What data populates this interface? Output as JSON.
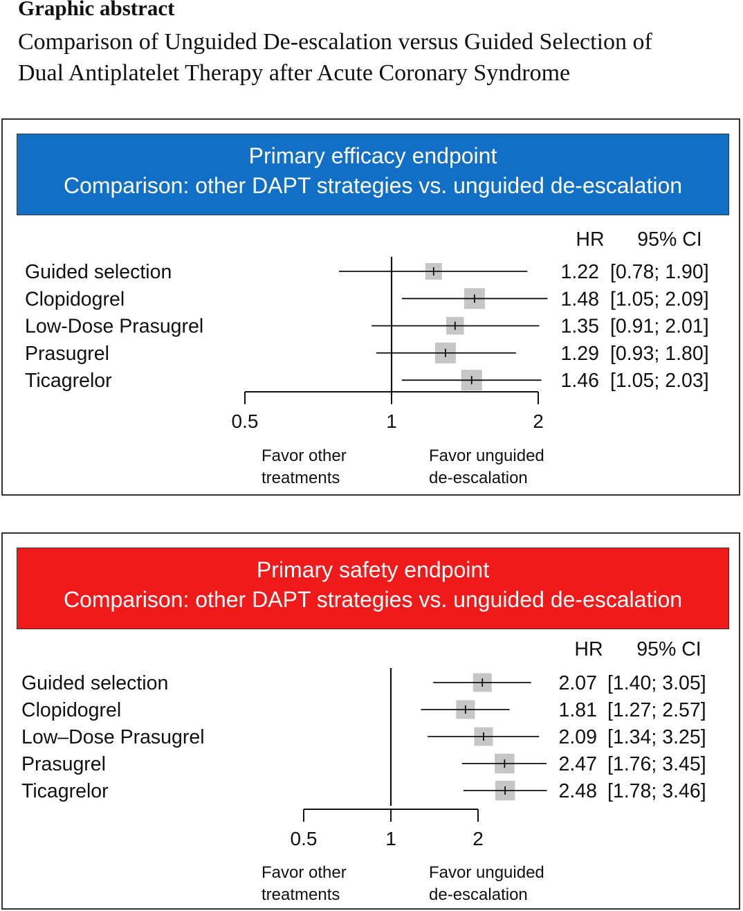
{
  "header": {
    "title": "Graphic abstract",
    "subtitle_line1": "Comparison of Unguided De-escalation versus Guided Selection of",
    "subtitle_line2": "Dual Antiplatelet Therapy after Acute Coronary Syndrome"
  },
  "colors": {
    "efficacy_banner": "#1170c6",
    "safety_banner": "#f01a1a",
    "ci_box": "#c6c6c6",
    "line": "#111111"
  },
  "chart_data": [
    {
      "type": "forest",
      "title": "Primary efficacy endpoint",
      "subtitle": "Comparison: other DAPT strategies vs. unguided de-escalation",
      "col_hr": "HR",
      "col_ci": "95% CI",
      "scale": "log",
      "xlim": [
        0.5,
        2.0
      ],
      "ticks": [
        {
          "value": 0.5,
          "label": "0.5"
        },
        {
          "value": 1,
          "label": "1"
        },
        {
          "value": 2,
          "label": "2"
        }
      ],
      "reference": 1,
      "favor_left": [
        "Favor other",
        "treatments"
      ],
      "favor_right": [
        "Favor unguided",
        "de-escalation"
      ],
      "rows": [
        {
          "label": "Guided selection",
          "hr": 1.22,
          "lo": 0.78,
          "hi": 1.9,
          "hr_text": "1.22",
          "ci_text": "[0.78; 1.90]",
          "weight": 0.8
        },
        {
          "label": "Clopidogrel",
          "hr": 1.48,
          "lo": 1.05,
          "hi": 2.09,
          "hr_text": "1.48",
          "ci_text": "[1.05; 2.09]",
          "weight": 1.0
        },
        {
          "label": "Low-Dose Prasugrel",
          "hr": 1.35,
          "lo": 0.91,
          "hi": 2.01,
          "hr_text": "1.35",
          "ci_text": "[0.91; 2.01]",
          "weight": 0.85
        },
        {
          "label": "Prasugrel",
          "hr": 1.29,
          "lo": 0.93,
          "hi": 1.8,
          "hr_text": "1.29",
          "ci_text": "[0.93; 1.80]",
          "weight": 1.0
        },
        {
          "label": "Ticagrelor",
          "hr": 1.46,
          "lo": 1.05,
          "hi": 2.03,
          "hr_text": "1.46",
          "ci_text": "[1.05; 2.03]",
          "weight": 1.0
        }
      ]
    },
    {
      "type": "forest",
      "title": "Primary safety endpoint",
      "subtitle": "Comparison: other DAPT strategies vs. unguided de-escalation",
      "col_hr": "HR",
      "col_ci": "95% CI",
      "scale": "log",
      "xlim": [
        0.5,
        2.0
      ],
      "ticks": [
        {
          "value": 0.5,
          "label": "0.5"
        },
        {
          "value": 1,
          "label": "1"
        },
        {
          "value": 2,
          "label": "2"
        }
      ],
      "reference": 1,
      "favor_left": [
        "Favor other",
        "treatments"
      ],
      "favor_right": [
        "Favor unguided",
        "de-escalation"
      ],
      "rows": [
        {
          "label": "Guided selection",
          "hr": 2.07,
          "lo": 1.4,
          "hi": 3.05,
          "hr_text": "2.07",
          "ci_text": "[1.40; 3.05]",
          "weight": 0.9
        },
        {
          "label": "Clopidogrel",
          "hr": 1.81,
          "lo": 1.27,
          "hi": 2.57,
          "hr_text": "1.81",
          "ci_text": "[1.27; 2.57]",
          "weight": 0.9
        },
        {
          "label": "Low–Dose Prasugrel",
          "hr": 2.09,
          "lo": 1.34,
          "hi": 3.25,
          "hr_text": "2.09",
          "ci_text": "[1.34; 3.25]",
          "weight": 0.9
        },
        {
          "label": "Prasugrel",
          "hr": 2.47,
          "lo": 1.76,
          "hi": 3.45,
          "hr_text": "2.47",
          "ci_text": "[1.76; 3.45]",
          "weight": 0.95
        },
        {
          "label": "Ticagrelor",
          "hr": 2.48,
          "lo": 1.78,
          "hi": 3.46,
          "hr_text": "2.48",
          "ci_text": "[1.78; 3.46]",
          "weight": 0.95
        }
      ]
    }
  ]
}
